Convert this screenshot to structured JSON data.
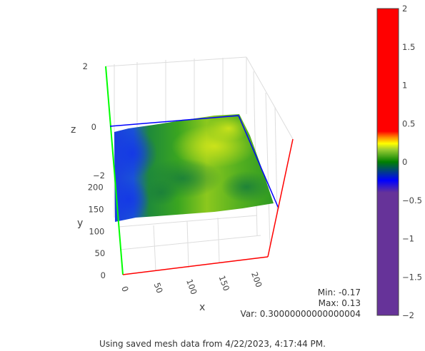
{
  "chart_data": {
    "type": "surface",
    "title": "",
    "axes": {
      "x": {
        "title": "x",
        "range": [
          0,
          220
        ],
        "ticks": [
          "0",
          "50",
          "100",
          "150",
          "200"
        ],
        "line_color": "#ff0000"
      },
      "y": {
        "title": "y",
        "range": [
          0,
          240
        ],
        "ticks": [
          "0",
          "50",
          "100",
          "150",
          "200"
        ],
        "line_color": "#0000ff"
      },
      "z": {
        "title": "z",
        "range": [
          -2,
          2
        ],
        "ticks": [
          "−2",
          "0",
          "2"
        ],
        "line_color": "#00ff00"
      }
    },
    "grid": true,
    "surface": {
      "z_min": -0.17,
      "z_max": 0.13,
      "note_values": "surface heights range between min and max, lower values on the left (blue), higher in middle (yellow-green)"
    },
    "colorbar": {
      "range": [
        -2,
        2
      ],
      "ticks": [
        "2",
        "1.5",
        "1",
        "0.5",
        "0",
        "−0.5",
        "−1",
        "−1.5",
        "−2"
      ],
      "colorscale": [
        [
          0.0,
          "#663399"
        ],
        [
          0.4,
          "#663399"
        ],
        [
          0.44,
          "#0000ff"
        ],
        [
          0.5,
          "#008000"
        ],
        [
          0.54,
          "#9acd32"
        ],
        [
          0.56,
          "#ffff00"
        ],
        [
          0.58,
          "#ff8c00"
        ],
        [
          0.6,
          "#ff0000"
        ],
        [
          1.0,
          "#ff0000"
        ]
      ]
    }
  },
  "stats": {
    "min": "Min: -0.17",
    "max": "Max: 0.13",
    "var": "Var: 0.30000000000000004"
  },
  "footer": "Using saved mesh data from 4/22/2023, 4:17:44 PM."
}
